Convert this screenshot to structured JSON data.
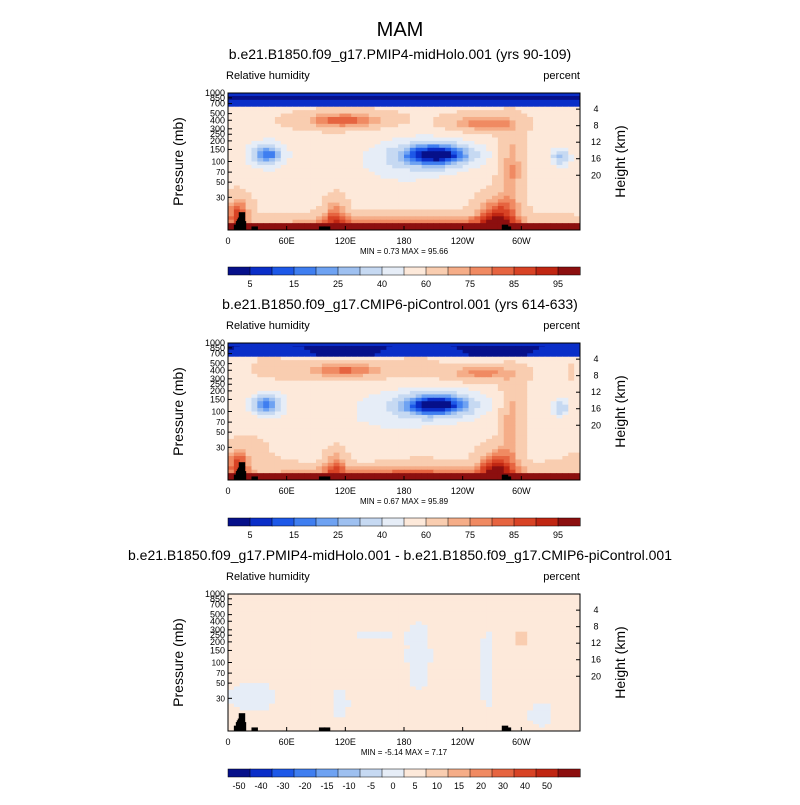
{
  "page_title": "MAM",
  "chart_data": [
    {
      "type": "heatmap",
      "title": "b.e21.B1850.f09_g17.PMIP4-midHolo.001 (yrs 90-109)",
      "left_label": "Relative humidity",
      "right_label": "percent",
      "ylabel": "Pressure (mb)",
      "y2label": "Height (km)",
      "x_ticks": [
        "0",
        "60E",
        "120E",
        "180",
        "120W",
        "60W"
      ],
      "y_ticks": [
        "1000",
        "850",
        "700",
        "500",
        "400",
        "300",
        "250",
        "200",
        "150",
        "100",
        "70",
        "50",
        "30"
      ],
      "y2_ticks": [
        "4",
        "8",
        "12",
        "16",
        "20"
      ],
      "stats": "MIN =   0.73  MAX =  95.66",
      "min": 0.73,
      "max": 95.66,
      "colorbar_labels": [
        "5",
        "15",
        "25",
        "40",
        "60",
        "75",
        "85",
        "95"
      ],
      "colorbar_levels": [
        5,
        10,
        15,
        20,
        25,
        30,
        40,
        50,
        60,
        70,
        75,
        80,
        85,
        90,
        95
      ],
      "field": "absolute"
    },
    {
      "type": "heatmap",
      "title": "b.e21.B1850.f09_g17.CMIP6-piControl.001 (yrs 614-633)",
      "left_label": "Relative humidity",
      "right_label": "percent",
      "ylabel": "Pressure (mb)",
      "y2label": "Height (km)",
      "x_ticks": [
        "0",
        "60E",
        "120E",
        "180",
        "120W",
        "60W"
      ],
      "y_ticks": [
        "1000",
        "850",
        "700",
        "500",
        "400",
        "300",
        "250",
        "200",
        "150",
        "100",
        "70",
        "50",
        "30"
      ],
      "y2_ticks": [
        "4",
        "8",
        "12",
        "16",
        "20"
      ],
      "stats": "MIN =   0.67  MAX =  95.89",
      "min": 0.67,
      "max": 95.89,
      "colorbar_labels": [
        "5",
        "15",
        "25",
        "40",
        "60",
        "75",
        "85",
        "95"
      ],
      "colorbar_levels": [
        5,
        10,
        15,
        20,
        25,
        30,
        40,
        50,
        60,
        70,
        75,
        80,
        85,
        90,
        95
      ],
      "field": "absolute"
    },
    {
      "type": "heatmap",
      "title": "b.e21.B1850.f09_g17.PMIP4-midHolo.001 - b.e21.B1850.f09_g17.CMIP6-piControl.001",
      "left_label": "Relative humidity",
      "right_label": "percent",
      "ylabel": "Pressure (mb)",
      "y2label": "Height (km)",
      "x_ticks": [
        "0",
        "60E",
        "120E",
        "180",
        "120W",
        "60W"
      ],
      "y_ticks": [
        "1000",
        "850",
        "700",
        "500",
        "400",
        "300",
        "250",
        "200",
        "150",
        "100",
        "70",
        "50",
        "30"
      ],
      "y2_ticks": [
        "4",
        "8",
        "12",
        "16",
        "20"
      ],
      "stats": "MIN =  -5.14  MAX =   7.17",
      "min": -5.14,
      "max": 7.17,
      "colorbar_labels": [
        "-50",
        "-40",
        "-30",
        "-20",
        "-15",
        "-10",
        "-5",
        "0",
        "5",
        "10",
        "15",
        "20",
        "30",
        "40",
        "50"
      ],
      "colorbar_levels": [
        -50,
        -40,
        -30,
        -20,
        -15,
        -10,
        -5,
        0,
        5,
        10,
        15,
        20,
        30,
        40,
        50
      ],
      "field": "difference"
    }
  ],
  "colors": {
    "palette": [
      "#06108a",
      "#0a2ec8",
      "#1d58e8",
      "#3f7ef0",
      "#6ea2f2",
      "#9ec0f0",
      "#c6d9f2",
      "#e6edf7",
      "#fde9da",
      "#f9cdb0",
      "#f5ad88",
      "#f08a62",
      "#e66440",
      "#d84325",
      "#c02612",
      "#8c0f0f"
    ],
    "topography": "#000000",
    "stratosphere_band": "#0a2ec8"
  }
}
